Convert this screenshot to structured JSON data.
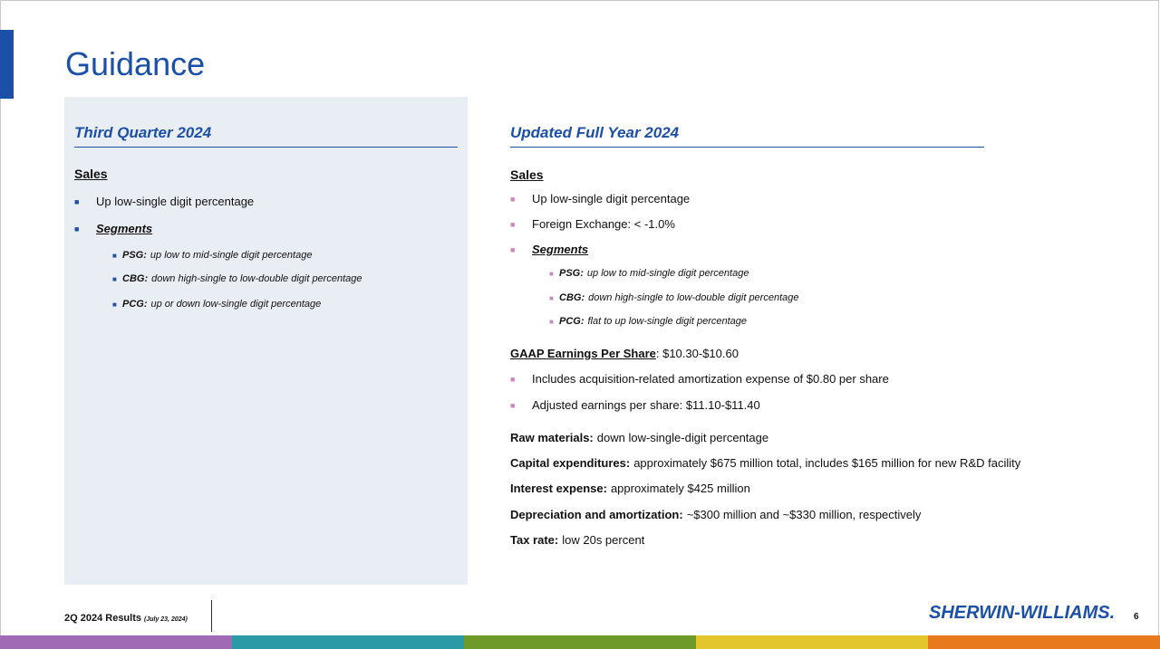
{
  "slide": {
    "title": "Guidance",
    "page_number": "6"
  },
  "left": {
    "heading": "Third Quarter 2024",
    "sales_label": "Sales",
    "items": [
      "Up low-single digit percentage"
    ],
    "segments_label": "Segments",
    "segments": [
      {
        "code": "PSG:",
        "text": "up low to mid-single digit percentage"
      },
      {
        "code": "CBG:",
        "text": "down high-single to low-double digit percentage"
      },
      {
        "code": "PCG:",
        "text": "up or down low-single digit percentage"
      }
    ]
  },
  "right": {
    "heading": "Updated Full Year 2024",
    "sales_label": "Sales",
    "items": [
      "Up low-single digit percentage",
      "Foreign Exchange: < -1.0%"
    ],
    "segments_label": "Segments",
    "segments": [
      {
        "code": "PSG:",
        "text": "up low to mid-single digit percentage"
      },
      {
        "code": "CBG:",
        "text": "down high-single to low-double digit percentage"
      },
      {
        "code": "PCG:",
        "text": "flat to up low-single digit percentage"
      }
    ],
    "eps_label": "GAAP Earnings Per Share",
    "eps_value": ": $10.30-$10.60",
    "eps_items": [
      "Includes acquisition-related amortization expense of $0.80 per share",
      "Adjusted earnings per share: $11.10-$11.40"
    ],
    "other": [
      {
        "label": "Raw materials:",
        "value": "down low-single-digit percentage"
      },
      {
        "label": "Capital expenditures:",
        "value": "approximately $675 million total, includes $165 million for new R&D facility"
      },
      {
        "label": "Interest expense:",
        "value": "approximately $425 million"
      },
      {
        "label": "Depreciation and amortization:",
        "value": "~$300 million and ~$330 million, respectively"
      },
      {
        "label": "Tax rate:",
        "value": "low 20s percent"
      }
    ]
  },
  "footer": {
    "results": "2Q 2024 Results",
    "date": "(July 23, 2024)",
    "logo": "SHERWIN-WILLIAMS."
  },
  "stripe_colors": [
    "#a06ab4",
    "#2a9aa7",
    "#6e9a2a",
    "#e3c52c",
    "#e8791c"
  ]
}
